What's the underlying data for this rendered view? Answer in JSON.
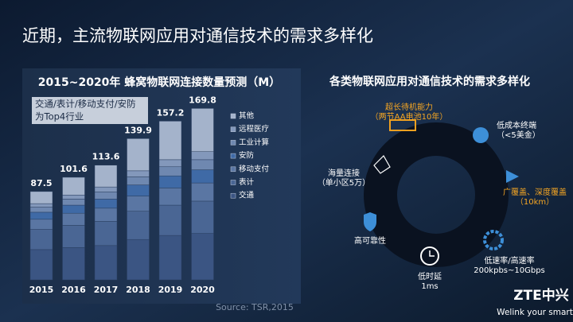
{
  "slide_title": "近期，主流物联网应用对通信技术的需求多样化",
  "chart_data": {
    "type": "stacked-bar",
    "title": "2015~2020年 蜂窝物联网连接数量预测（M）",
    "annotation": [
      "交通/表计/移动支付/安防",
      "为Top4行业"
    ],
    "categories": [
      "2015",
      "2016",
      "2017",
      "2018",
      "2019",
      "2020"
    ],
    "totals": [
      87.5,
      101.6,
      113.6,
      139.9,
      157.2,
      169.8
    ],
    "series": [
      {
        "name": "交通",
        "color": "#3b5583",
        "values": [
          30,
          32,
          34,
          40,
          44,
          46
        ]
      },
      {
        "name": "表计",
        "color": "#4a6694",
        "values": [
          20,
          22,
          24,
          28,
          30,
          32
        ]
      },
      {
        "name": "移动支付",
        "color": "#5a76a3",
        "values": [
          10,
          12,
          13,
          15,
          17,
          18
        ]
      },
      {
        "name": "安防",
        "color": "#3f6aa6",
        "values": [
          7,
          8,
          9,
          11,
          12,
          13
        ]
      },
      {
        "name": "工业计算",
        "color": "#6f88b0",
        "values": [
          5,
          6,
          7,
          8,
          9,
          10
        ]
      },
      {
        "name": "远程医疗",
        "color": "#8398bb",
        "values": [
          3.5,
          4,
          5,
          6,
          7,
          8
        ]
      },
      {
        "name": "其他",
        "color": "#a4b3cb",
        "values": [
          12,
          17.6,
          21.6,
          31.9,
          38.2,
          42.8
        ]
      }
    ],
    "source": "Source: TSR,2015"
  },
  "diagram": {
    "title": "各类物联网应用对通信技术的需求多样化",
    "nodes": [
      {
        "lines": [
          "超长待机能力",
          "（两节AA电池10年）"
        ]
      },
      {
        "lines": [
          "低成本终端",
          "（<5美金）"
        ]
      },
      {
        "lines": [
          "广覆盖、深度覆盖",
          "（10km）"
        ]
      },
      {
        "lines": [
          "低速率/高速率",
          "200kpbs~10Gbps"
        ]
      },
      {
        "lines": [
          "低时延",
          "1ms"
        ]
      },
      {
        "lines": [
          "高可靠性"
        ]
      },
      {
        "lines": [
          "海量连接",
          "（单小区5万）"
        ]
      }
    ]
  },
  "footer": {
    "logo": "ZTE中兴",
    "slogan": "Welink your smart"
  }
}
